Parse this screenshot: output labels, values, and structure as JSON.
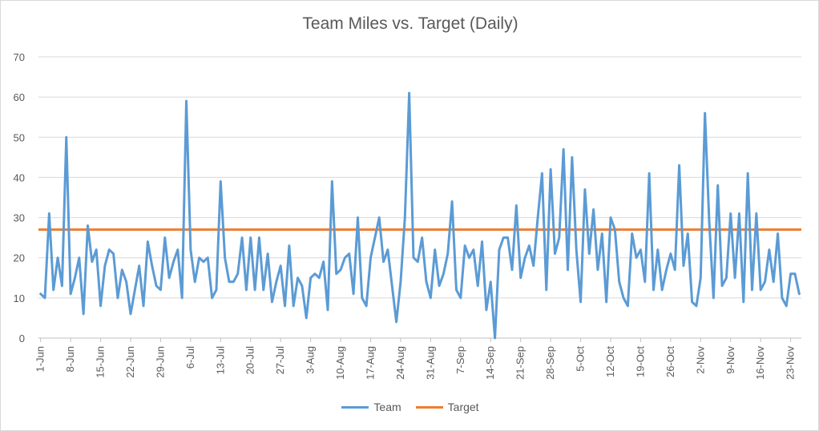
{
  "chart_data": {
    "type": "line",
    "title": "Team Miles vs. Target (Daily)",
    "xlabel": "",
    "ylabel": "",
    "ylim": [
      0,
      70
    ],
    "yticks": [
      0,
      10,
      20,
      30,
      40,
      50,
      60,
      70
    ],
    "grid": true,
    "legend_position": "bottom",
    "x_tick_labels": [
      "1-Jun",
      "8-Jun",
      "15-Jun",
      "22-Jun",
      "29-Jun",
      "6-Jul",
      "13-Jul",
      "20-Jul",
      "27-Jul",
      "3-Aug",
      "10-Aug",
      "17-Aug",
      "24-Aug",
      "31-Aug",
      "7-Sep",
      "14-Sep",
      "21-Sep",
      "28-Sep",
      "5-Oct",
      "12-Oct",
      "19-Oct",
      "26-Oct",
      "2-Nov",
      "9-Nov",
      "16-Nov",
      "23-Nov"
    ],
    "series": [
      {
        "name": "Team",
        "color": "#5b9bd5",
        "values": [
          11,
          10,
          31,
          12,
          20,
          13,
          50,
          11,
          15,
          20,
          6,
          28,
          19,
          22,
          8,
          18,
          22,
          21,
          10,
          17,
          14,
          6,
          12,
          18,
          8,
          24,
          18,
          13,
          12,
          25,
          15,
          19,
          22,
          10,
          59,
          22,
          14,
          20,
          19,
          20,
          10,
          12,
          39,
          20,
          14,
          14,
          16,
          25,
          12,
          25,
          12,
          25,
          12,
          21,
          9,
          14,
          18,
          8,
          23,
          8,
          15,
          13,
          5,
          15,
          16,
          15,
          19,
          7,
          39,
          16,
          17,
          20,
          21,
          11,
          30,
          10,
          8,
          20,
          25,
          30,
          19,
          22,
          13,
          4,
          14,
          30,
          61,
          20,
          19,
          25,
          14,
          10,
          22,
          13,
          16,
          21,
          34,
          12,
          10,
          23,
          20,
          22,
          13,
          24,
          7,
          14,
          0,
          22,
          25,
          25,
          17,
          33,
          15,
          20,
          23,
          18,
          30,
          41,
          12,
          42,
          21,
          25,
          47,
          17,
          45,
          22,
          9,
          37,
          21,
          32,
          17,
          26,
          9,
          30,
          27,
          14,
          10,
          8,
          26,
          20,
          22,
          14,
          41,
          12,
          22,
          12,
          17,
          21,
          17,
          43,
          18,
          26,
          9,
          8,
          15,
          56,
          29,
          10,
          38,
          13,
          15,
          31,
          15,
          31,
          9,
          41,
          12,
          31,
          12,
          14,
          22,
          14,
          26,
          10,
          8,
          16,
          16,
          11
        ]
      },
      {
        "name": "Target",
        "color": "#ed7d31",
        "constant_value": 27
      }
    ]
  }
}
